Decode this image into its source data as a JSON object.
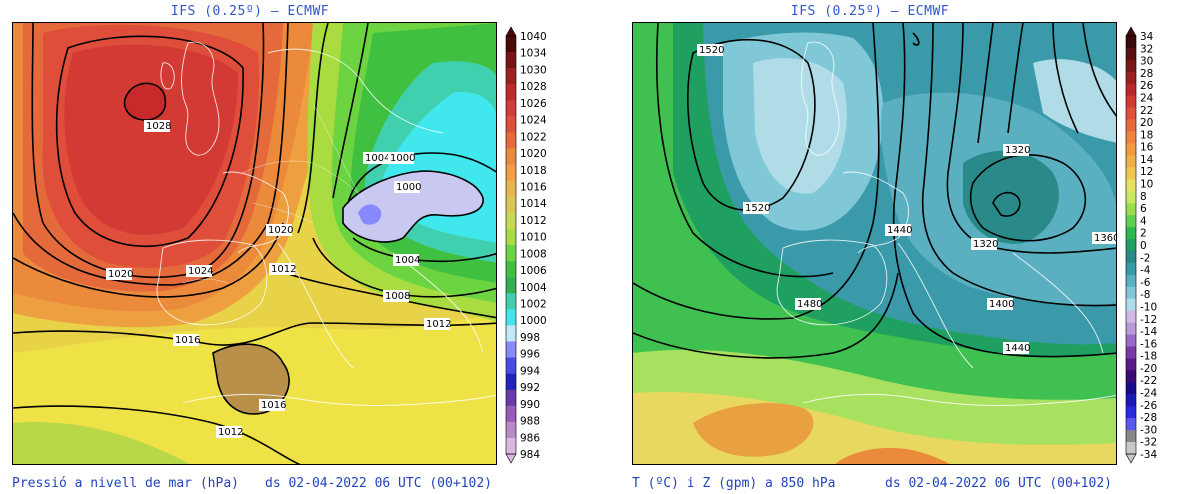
{
  "left_panel": {
    "title": "IFS (0.25º) — ECMWF",
    "caption_variable": "Pressió a nivell de mar (hPa)",
    "caption_time": "ds 02-04-2022 06 UTC (00+102)",
    "colorbar_labels": [
      "1040",
      "1034",
      "1030",
      "1028",
      "1026",
      "1024",
      "1022",
      "1020",
      "1018",
      "1016",
      "1014",
      "1012",
      "1010",
      "1008",
      "1006",
      "1004",
      "1002",
      "1000",
      "998",
      "996",
      "994",
      "992",
      "990",
      "988",
      "986",
      "984"
    ],
    "colorbar_colors": [
      "#4a0a0a",
      "#7a1414",
      "#a02020",
      "#c02a2a",
      "#d63a3a",
      "#e04e3c",
      "#e86a3c",
      "#ee8a3c",
      "#f0a040",
      "#e4b848",
      "#d8c850",
      "#c8d850",
      "#a8dc40",
      "#6cd440",
      "#40c040",
      "#30b050",
      "#40d0b0",
      "#40e8ee",
      "#c0e8f8",
      "#8888ff",
      "#4a4ae8",
      "#2222c0",
      "#6a3aa8",
      "#9a5ab8",
      "#b88ac8",
      "#d8b8e0"
    ],
    "isobar_labels": [
      "1028",
      "1024",
      "1020",
      "1020",
      "1016",
      "1016",
      "1012",
      "1012",
      "1012",
      "1008",
      "1004",
      "1004",
      "1000",
      "1000"
    ]
  },
  "right_panel": {
    "title": "IFS (0.25º) — ECMWF",
    "caption_variable": "T (ºC) i Z (gpm) a 850 hPa",
    "caption_time": "ds 02-04-2022 06 UTC (00+102)",
    "colorbar_labels": [
      "34",
      "32",
      "30",
      "28",
      "26",
      "24",
      "22",
      "20",
      "18",
      "16",
      "14",
      "12",
      "10",
      "8",
      "6",
      "4",
      "2",
      "0",
      "-2",
      "-4",
      "-6",
      "-8",
      "-10",
      "-12",
      "-14",
      "-16",
      "-18",
      "-20",
      "-22",
      "-24",
      "-26",
      "-28",
      "-30",
      "-32",
      "-34"
    ],
    "colorbar_colors": [
      "#3a0a0a",
      "#5a1010",
      "#7a1818",
      "#9a2020",
      "#b82a2a",
      "#d03a30",
      "#e05038",
      "#e86a3c",
      "#ee843e",
      "#f09a40",
      "#f0b048",
      "#f0c850",
      "#e8e060",
      "#c8e860",
      "#9ade50",
      "#60d050",
      "#30b850",
      "#20a060",
      "#2a8a8a",
      "#3a9aaa",
      "#5ab0c0",
      "#80c8d8",
      "#b0dce8",
      "#d0b8e8",
      "#b89ad8",
      "#9a6ac8",
      "#7a3aa8",
      "#5a1a88",
      "#3a0a70",
      "#1a0a90",
      "#1a1ab8",
      "#2a2ae0",
      "#5a5af0",
      "#888888",
      "#c8c8c8"
    ],
    "contour_labels": [
      "1520",
      "1520",
      "1480",
      "1440",
      "1440",
      "1400",
      "1360",
      "1320",
      "1320"
    ]
  }
}
